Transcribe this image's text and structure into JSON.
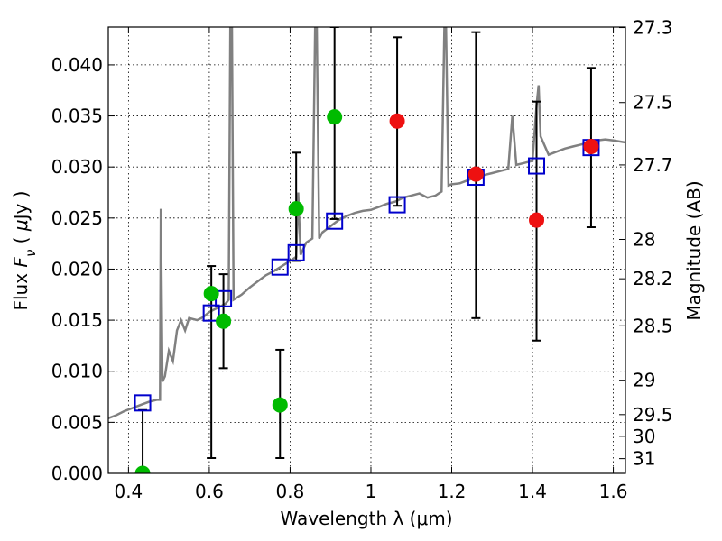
{
  "chart_data": {
    "type": "scatter",
    "xlabel": "Wavelength  λ (μm)",
    "ylabel": "Flux  F_ν  ( μJy )",
    "y2label": "Magnitude (AB)",
    "xlim": [
      0.35,
      1.63
    ],
    "ylim": [
      0.0,
      0.0437
    ],
    "grid": true,
    "x_ticks": [
      {
        "v": 0.4,
        "label": "0.4"
      },
      {
        "v": 0.6,
        "label": "0.6"
      },
      {
        "v": 0.8,
        "label": "0.8"
      },
      {
        "v": 1.0,
        "label": "1"
      },
      {
        "v": 1.2,
        "label": "1.2"
      },
      {
        "v": 1.4,
        "label": "1.4"
      },
      {
        "v": 1.6,
        "label": "1.6"
      }
    ],
    "y_ticks": [
      {
        "v": 0.0,
        "label": "0.000"
      },
      {
        "v": 0.005,
        "label": "0.005"
      },
      {
        "v": 0.01,
        "label": "0.010"
      },
      {
        "v": 0.015,
        "label": "0.015"
      },
      {
        "v": 0.02,
        "label": "0.020"
      },
      {
        "v": 0.025,
        "label": "0.025"
      },
      {
        "v": 0.03,
        "label": "0.030"
      },
      {
        "v": 0.035,
        "label": "0.035"
      },
      {
        "v": 0.04,
        "label": "0.040"
      }
    ],
    "mag_ticks": [
      {
        "v": 27.3,
        "label": "27.3"
      },
      {
        "v": 27.5,
        "label": "27.5"
      },
      {
        "v": 27.7,
        "label": "27.7"
      },
      {
        "v": 28.0,
        "label": "28"
      },
      {
        "v": 28.2,
        "label": "28.2"
      },
      {
        "v": 28.5,
        "label": "28.5"
      },
      {
        "v": 29.0,
        "label": "29"
      },
      {
        "v": 29.5,
        "label": "29.5"
      },
      {
        "v": 30.0,
        "label": "30"
      },
      {
        "v": 31.0,
        "label": "31"
      }
    ],
    "model_spectrum": {
      "color": "#808080",
      "points": [
        [
          0.35,
          0.0054
        ],
        [
          0.37,
          0.0057
        ],
        [
          0.39,
          0.0061
        ],
        [
          0.41,
          0.0064
        ],
        [
          0.43,
          0.0067
        ],
        [
          0.45,
          0.007
        ],
        [
          0.47,
          0.0072
        ],
        [
          0.478,
          0.0072
        ],
        [
          0.48,
          0.0259
        ],
        [
          0.484,
          0.009
        ],
        [
          0.49,
          0.0095
        ],
        [
          0.5,
          0.012
        ],
        [
          0.51,
          0.011
        ],
        [
          0.52,
          0.014
        ],
        [
          0.53,
          0.015
        ],
        [
          0.54,
          0.014
        ],
        [
          0.55,
          0.0152
        ],
        [
          0.57,
          0.015
        ],
        [
          0.585,
          0.0153
        ],
        [
          0.6,
          0.0158
        ],
        [
          0.62,
          0.0162
        ],
        [
          0.64,
          0.0166
        ],
        [
          0.648,
          0.017
        ],
        [
          0.652,
          0.0437
        ],
        [
          0.656,
          0.0437
        ],
        [
          0.66,
          0.017
        ],
        [
          0.68,
          0.0175
        ],
        [
          0.7,
          0.0182
        ],
        [
          0.72,
          0.0188
        ],
        [
          0.74,
          0.0194
        ],
        [
          0.76,
          0.0198
        ],
        [
          0.78,
          0.0203
        ],
        [
          0.8,
          0.0208
        ],
        [
          0.815,
          0.0212
        ],
        [
          0.82,
          0.0275
        ],
        [
          0.826,
          0.0214
        ],
        [
          0.84,
          0.0226
        ],
        [
          0.855,
          0.023
        ],
        [
          0.862,
          0.0437
        ],
        [
          0.866,
          0.0437
        ],
        [
          0.872,
          0.023
        ],
        [
          0.88,
          0.0236
        ],
        [
          0.9,
          0.0242
        ],
        [
          0.92,
          0.0248
        ],
        [
          0.94,
          0.0252
        ],
        [
          0.96,
          0.0255
        ],
        [
          0.98,
          0.0257
        ],
        [
          1.0,
          0.0258
        ],
        [
          1.02,
          0.0261
        ],
        [
          1.04,
          0.0264
        ],
        [
          1.06,
          0.0266
        ],
        [
          1.08,
          0.027
        ],
        [
          1.1,
          0.0272
        ],
        [
          1.12,
          0.0274
        ],
        [
          1.14,
          0.027
        ],
        [
          1.16,
          0.0272
        ],
        [
          1.175,
          0.0276
        ],
        [
          1.182,
          0.0437
        ],
        [
          1.186,
          0.0437
        ],
        [
          1.192,
          0.0282
        ],
        [
          1.2,
          0.0283
        ],
        [
          1.22,
          0.0284
        ],
        [
          1.24,
          0.0287
        ],
        [
          1.26,
          0.029
        ],
        [
          1.28,
          0.0292
        ],
        [
          1.3,
          0.0294
        ],
        [
          1.32,
          0.0296
        ],
        [
          1.34,
          0.0298
        ],
        [
          1.35,
          0.035
        ],
        [
          1.36,
          0.0302
        ],
        [
          1.38,
          0.0304
        ],
        [
          1.4,
          0.0306
        ],
        [
          1.41,
          0.036
        ],
        [
          1.415,
          0.038
        ],
        [
          1.42,
          0.033
        ],
        [
          1.44,
          0.0312
        ],
        [
          1.46,
          0.0315
        ],
        [
          1.48,
          0.0318
        ],
        [
          1.5,
          0.032
        ],
        [
          1.52,
          0.0322
        ],
        [
          1.54,
          0.0324
        ],
        [
          1.56,
          0.0326
        ],
        [
          1.58,
          0.0327
        ],
        [
          1.6,
          0.0326
        ],
        [
          1.63,
          0.0324
        ]
      ]
    },
    "model_bands": {
      "color": "#0000cc",
      "x": [
        0.435,
        0.605,
        0.635,
        0.775,
        0.815,
        0.91,
        1.065,
        1.26,
        1.41,
        1.545
      ],
      "y": [
        0.0069,
        0.0157,
        0.0171,
        0.0202,
        0.0216,
        0.0247,
        0.0263,
        0.029,
        0.0301,
        0.0319
      ]
    },
    "observed_detections": {
      "color": "#00bb00",
      "x": [
        0.435,
        0.605,
        0.635,
        0.775,
        0.815,
        0.91
      ],
      "y": [
        0.0,
        0.0176,
        0.0149,
        0.0067,
        0.0259,
        0.0349
      ],
      "yerr_low": [
        0.0,
        0.0015,
        0.0103,
        0.0015,
        0.0208,
        0.0249
      ],
      "yerr_high": [
        0.0062,
        0.0203,
        0.0195,
        0.0121,
        0.0314,
        0.0437
      ]
    },
    "observed_other": {
      "color": "#ee1111",
      "x": [
        1.065,
        1.26,
        1.41,
        1.545
      ],
      "y": [
        0.0345,
        0.0293,
        0.0248,
        0.032
      ],
      "yerr_low": [
        0.0262,
        0.0152,
        0.013,
        0.0241
      ],
      "yerr_high": [
        0.0427,
        0.0432,
        0.0364,
        0.0397
      ]
    }
  }
}
